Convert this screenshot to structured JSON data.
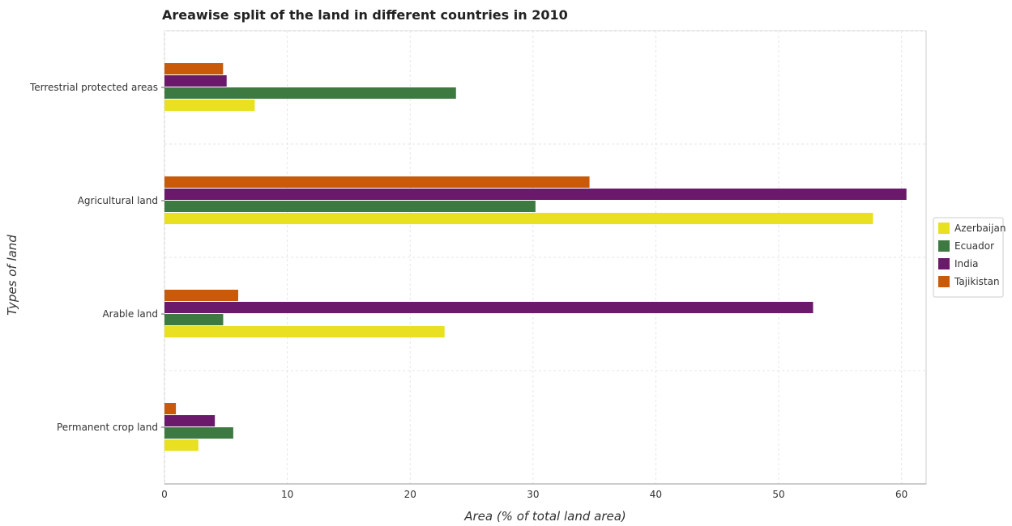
{
  "chart_data": {
    "type": "bar",
    "orientation": "horizontal",
    "title": "Areawise split of the land in different countries in 2010",
    "xlabel": "Area (% of total land area)",
    "ylabel": "Types of land",
    "xlim": [
      0,
      62
    ],
    "xticks": [
      0,
      10,
      20,
      30,
      40,
      50,
      60
    ],
    "categories": [
      "Terrestrial protected areas",
      "Agricultural land",
      "Arable land",
      "Permanent crop land"
    ],
    "series": [
      {
        "name": "Azerbaijan",
        "color": "#e8e020",
        "values": [
          7.35,
          57.68,
          22.8,
          2.76
        ]
      },
      {
        "name": "Ecuador",
        "color": "#3d7a41",
        "values": [
          23.73,
          30.2,
          4.78,
          5.6
        ]
      },
      {
        "name": "India",
        "color": "#6b1a6b",
        "values": [
          5.06,
          60.4,
          52.8,
          4.1
        ]
      },
      {
        "name": "Tajikistan",
        "color": "#c85a0a",
        "values": [
          4.77,
          34.6,
          6.0,
          0.93
        ]
      }
    ],
    "grid": true,
    "legend_position": "right"
  }
}
